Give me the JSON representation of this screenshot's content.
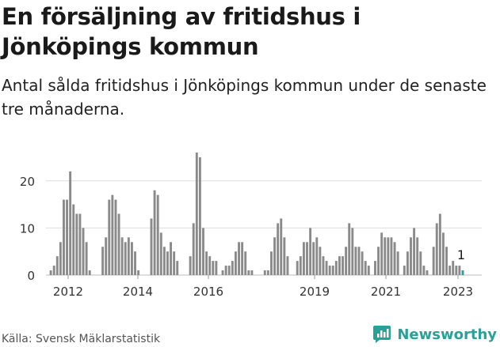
{
  "header": {
    "title": "En försäljning av fritidshus i Jönköpings kommun",
    "subtitle": "Antal sålda fritidshus i Jönköpings kommun under de senaste tre månaderna."
  },
  "footer": {
    "source": "Källa: Svensk Mäklarstatistik",
    "brand": "Newsworthy"
  },
  "colors": {
    "bar": "#8a8a8a",
    "highlight": "#2aa198",
    "grid": "#dddddd",
    "text": "#1a1a1a",
    "brand": "#2aa198"
  },
  "chart_data": {
    "type": "bar",
    "ylim": [
      0,
      26
    ],
    "y_ticks": [
      0,
      10,
      20
    ],
    "x_ticks": [
      "2012",
      "2014",
      "2016",
      "2019",
      "2021",
      "2023"
    ],
    "grid": true,
    "annotation": "1",
    "series": [
      {
        "values": [
          0,
          1,
          2,
          4,
          7,
          16,
          16,
          22,
          15,
          13,
          13,
          10,
          7,
          1,
          0,
          0,
          0,
          6,
          8,
          16,
          17,
          16,
          13,
          8,
          7,
          8,
          7,
          5,
          1,
          0,
          0,
          0,
          12,
          18,
          17,
          9,
          6,
          5,
          7,
          5,
          3,
          0,
          0,
          0,
          4,
          11,
          26,
          25,
          10,
          5,
          4,
          3,
          3,
          0,
          1,
          2,
          2,
          3,
          5,
          7,
          7,
          5,
          1,
          1,
          0,
          0,
          0,
          1,
          1,
          5,
          8,
          11,
          12,
          8,
          4,
          0,
          0,
          3,
          4,
          7,
          7,
          10,
          7,
          8,
          6,
          4,
          3,
          2,
          2,
          3,
          4,
          4,
          6,
          11,
          10,
          6,
          6,
          5,
          3,
          2,
          0,
          3,
          6,
          9,
          8,
          8,
          8,
          7,
          5,
          0,
          2,
          5,
          8,
          10,
          8,
          5,
          2,
          1,
          0,
          6,
          11,
          13,
          9,
          6,
          2,
          3,
          2,
          2,
          1
        ]
      }
    ]
  }
}
